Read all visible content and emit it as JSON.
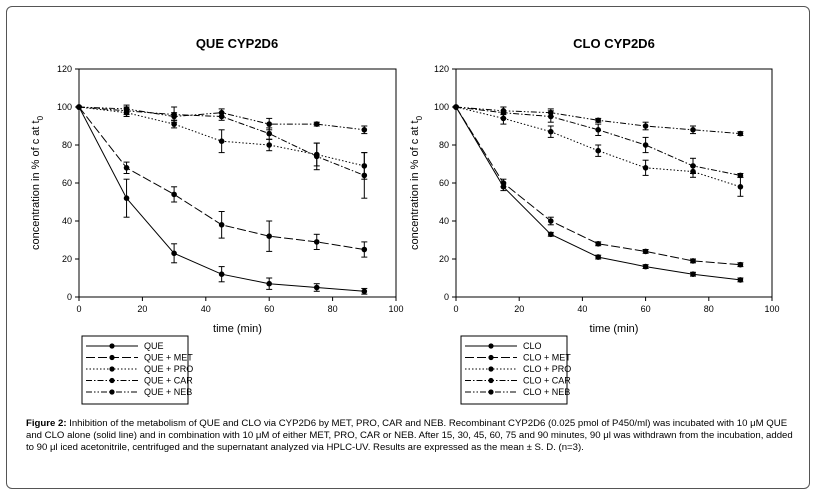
{
  "caption": {
    "label": "Figure 2:",
    "text": " Inhibition of the metabolism of QUE and CLO via CYP2D6 by MET, PRO, CAR and NEB. Recombinant CYP2D6 (0.025 pmol of P450/ml) was incubated with 10 μM QUE and CLO alone (solid line) and in combination with 10 μM of either MET, PRO, CAR or NEB. After 15, 30, 45, 60, 75 and 90 minutes, 90 μl was withdrawn from the incubation, added to 90 μl iced acetonitrile, centrifuged and the supernatant analyzed via HPLC-UV. Results are expressed as the mean ± S. D. (n=3)."
  },
  "chart_data": [
    {
      "type": "line",
      "title": "QUE CYP2D6",
      "xlabel": "time (min)",
      "ylabel": "concentration in % of c at t",
      "ylabel_sub": "0",
      "xlim": [
        0,
        100
      ],
      "ylim": [
        0,
        120
      ],
      "x_ticks": [
        "0",
        "20",
        "40",
        "60",
        "80",
        "100"
      ],
      "y_ticks": [
        "0",
        "20",
        "40",
        "60",
        "80",
        "100",
        "120"
      ],
      "x": [
        0,
        15,
        30,
        45,
        60,
        75,
        90
      ],
      "legend_position": "below",
      "series": [
        {
          "name": "QUE",
          "style": "solid",
          "values": [
            100,
            52,
            23,
            12,
            7,
            5,
            3
          ],
          "errors": [
            0,
            10,
            5,
            4,
            3,
            2,
            1.5
          ]
        },
        {
          "name": "QUE + MET",
          "style": "longdash",
          "values": [
            100,
            68,
            54,
            38,
            32,
            29,
            25
          ],
          "errors": [
            0,
            3,
            4,
            7,
            8,
            4,
            4
          ]
        },
        {
          "name": "QUE + PRO",
          "style": "dotted",
          "values": [
            100,
            97,
            91,
            82,
            80,
            75,
            69
          ],
          "errors": [
            0,
            2,
            2,
            6,
            3,
            6,
            7
          ]
        },
        {
          "name": "QUE + CAR",
          "style": "dashdot",
          "values": [
            100,
            98,
            96,
            95,
            86,
            74,
            64
          ],
          "errors": [
            0,
            2,
            4,
            2,
            3,
            7,
            12
          ]
        },
        {
          "name": "QUE + NEB",
          "style": "dashdotdot",
          "values": [
            100,
            99,
            95,
            97,
            91,
            91,
            88
          ],
          "errors": [
            0,
            2,
            2,
            2,
            3,
            1,
            2
          ]
        }
      ]
    },
    {
      "type": "line",
      "title": "CLO CYP2D6",
      "xlabel": "time (min)",
      "ylabel": "concentration in % of c at t",
      "ylabel_sub": "0",
      "xlim": [
        0,
        100
      ],
      "ylim": [
        0,
        120
      ],
      "x_ticks": [
        "0",
        "20",
        "40",
        "60",
        "80",
        "100"
      ],
      "y_ticks": [
        "0",
        "20",
        "40",
        "60",
        "80",
        "100",
        "120"
      ],
      "x": [
        0,
        15,
        30,
        45,
        60,
        75,
        90
      ],
      "legend_position": "below",
      "series": [
        {
          "name": "CLO",
          "style": "solid",
          "values": [
            100,
            58,
            33,
            21,
            16,
            12,
            9
          ],
          "errors": [
            0,
            2,
            1,
            1,
            1,
            1,
            1
          ]
        },
        {
          "name": "CLO + MET",
          "style": "longdash",
          "values": [
            100,
            60,
            40,
            28,
            24,
            19,
            17
          ],
          "errors": [
            0,
            2,
            2,
            1,
            1,
            1,
            1
          ]
        },
        {
          "name": "CLO + PRO",
          "style": "dotted",
          "values": [
            100,
            94,
            87,
            77,
            68,
            66,
            58
          ],
          "errors": [
            0,
            3,
            3,
            3,
            4,
            3,
            5
          ]
        },
        {
          "name": "CLO + CAR",
          "style": "dashdot",
          "values": [
            100,
            97,
            95,
            88,
            80,
            69,
            64
          ],
          "errors": [
            0,
            3,
            3,
            3,
            4,
            4,
            1
          ]
        },
        {
          "name": "CLO + NEB",
          "style": "dashdotdot",
          "values": [
            100,
            98,
            97,
            93,
            90,
            88,
            86
          ],
          "errors": [
            0,
            2,
            2,
            1,
            2,
            2,
            1
          ]
        }
      ]
    }
  ]
}
